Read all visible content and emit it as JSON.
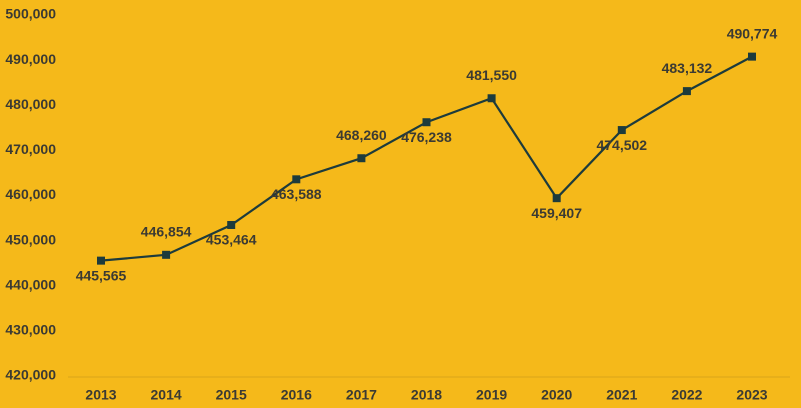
{
  "chart_data": {
    "type": "line",
    "categories": [
      "2013",
      "2014",
      "2015",
      "2016",
      "2017",
      "2018",
      "2019",
      "2020",
      "2021",
      "2022",
      "2023"
    ],
    "series": [
      {
        "color": "#1d3b3c",
        "values": [
          445565,
          446854,
          453464,
          463588,
          468260,
          476238,
          481550,
          459407,
          474502,
          483132,
          490774
        ],
        "value_labels": [
          "445,565",
          "446,854",
          "453,464",
          "463,588",
          "468,260",
          "476,238",
          "481,550",
          "459,407",
          "474,502",
          "483,132",
          "490,774"
        ]
      }
    ],
    "ylim": [
      420000,
      500000
    ],
    "yticks": [
      {
        "value": 420000,
        "label": "420,000"
      },
      {
        "value": 430000,
        "label": "430,000"
      },
      {
        "value": 440000,
        "label": "440,000"
      },
      {
        "value": 450000,
        "label": "450,000"
      },
      {
        "value": 460000,
        "label": "460,000"
      },
      {
        "value": 470000,
        "label": "470,000"
      },
      {
        "value": 480000,
        "label": "480,000"
      },
      {
        "value": 490000,
        "label": "490,000"
      },
      {
        "value": 500000,
        "label": "500,000"
      }
    ]
  }
}
